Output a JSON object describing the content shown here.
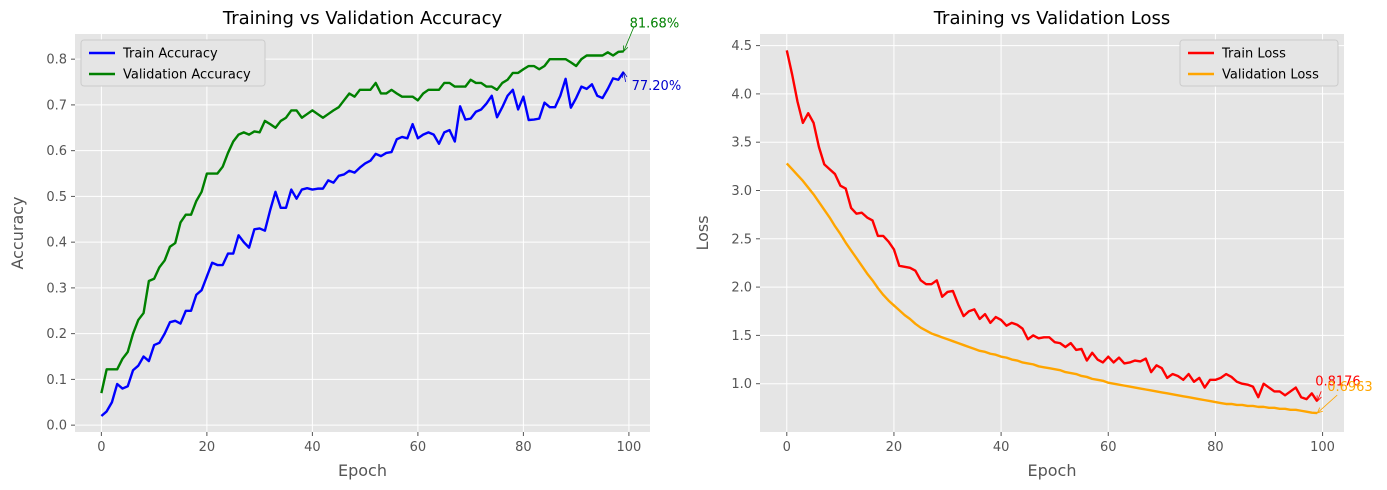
{
  "chart_data": [
    {
      "type": "line",
      "title": "Training vs Validation Accuracy",
      "xlabel": "Epoch",
      "ylabel": "Accuracy",
      "xlim": [
        -5,
        104
      ],
      "ylim": [
        -0.015,
        0.855
      ],
      "xticks": [
        0,
        20,
        40,
        60,
        80,
        100
      ],
      "yticks": [
        0.0,
        0.1,
        0.2,
        0.3,
        0.4,
        0.5,
        0.6,
        0.7,
        0.8
      ],
      "grid": true,
      "legend": "upper-left",
      "series": [
        {
          "name": "Train Accuracy",
          "color": "#0000ff",
          "x": [
            0,
            1,
            2,
            3,
            4,
            5,
            6,
            7,
            8,
            9,
            10,
            11,
            12,
            13,
            14,
            15,
            16,
            17,
            18,
            19,
            20,
            21,
            22,
            23,
            24,
            25,
            26,
            27,
            28,
            29,
            30,
            31,
            32,
            33,
            34,
            35,
            36,
            37,
            38,
            39,
            40,
            41,
            42,
            43,
            44,
            45,
            46,
            47,
            48,
            49,
            50,
            51,
            52,
            53,
            54,
            55,
            56,
            57,
            58,
            59,
            60,
            61,
            62,
            63,
            64,
            65,
            66,
            67,
            68,
            69,
            70,
            71,
            72,
            73,
            74,
            75,
            76,
            77,
            78,
            79,
            80,
            81,
            82,
            83,
            84,
            85,
            86,
            87,
            88,
            89,
            90,
            91,
            92,
            93,
            94,
            95,
            96,
            97,
            98,
            99
          ],
          "values": [
            0.02,
            0.03,
            0.05,
            0.09,
            0.08,
            0.085,
            0.12,
            0.13,
            0.15,
            0.14,
            0.175,
            0.18,
            0.2,
            0.225,
            0.228,
            0.222,
            0.25,
            0.25,
            0.285,
            0.295,
            0.325,
            0.355,
            0.35,
            0.35,
            0.375,
            0.375,
            0.415,
            0.4,
            0.388,
            0.428,
            0.43,
            0.425,
            0.47,
            0.51,
            0.475,
            0.475,
            0.515,
            0.495,
            0.515,
            0.518,
            0.515,
            0.517,
            0.517,
            0.535,
            0.53,
            0.545,
            0.548,
            0.556,
            0.552,
            0.563,
            0.572,
            0.578,
            0.593,
            0.588,
            0.595,
            0.597,
            0.625,
            0.63,
            0.627,
            0.658,
            0.627,
            0.635,
            0.64,
            0.635,
            0.615,
            0.64,
            0.645,
            0.62,
            0.697,
            0.668,
            0.67,
            0.685,
            0.69,
            0.703,
            0.72,
            0.673,
            0.695,
            0.72,
            0.733,
            0.69,
            0.718,
            0.667,
            0.668,
            0.67,
            0.705,
            0.695,
            0.695,
            0.72,
            0.757,
            0.694,
            0.715,
            0.74,
            0.735,
            0.745,
            0.72,
            0.715,
            0.735,
            0.758,
            0.755,
            0.772
          ]
        },
        {
          "name": "Validation Accuracy",
          "color": "#008000",
          "x": [
            0,
            1,
            2,
            3,
            4,
            5,
            6,
            7,
            8,
            9,
            10,
            11,
            12,
            13,
            14,
            15,
            16,
            17,
            18,
            19,
            20,
            21,
            22,
            23,
            24,
            25,
            26,
            27,
            28,
            29,
            30,
            31,
            32,
            33,
            34,
            35,
            36,
            37,
            38,
            39,
            40,
            41,
            42,
            43,
            44,
            45,
            46,
            47,
            48,
            49,
            50,
            51,
            52,
            53,
            54,
            55,
            56,
            57,
            58,
            59,
            60,
            61,
            62,
            63,
            64,
            65,
            66,
            67,
            68,
            69,
            70,
            71,
            72,
            73,
            74,
            75,
            76,
            77,
            78,
            79,
            80,
            81,
            82,
            83,
            84,
            85,
            86,
            87,
            88,
            89,
            90,
            91,
            92,
            93,
            94,
            95,
            96,
            97,
            98,
            99
          ],
          "values": [
            0.07,
            0.122,
            0.122,
            0.122,
            0.145,
            0.16,
            0.2,
            0.23,
            0.245,
            0.315,
            0.32,
            0.345,
            0.36,
            0.39,
            0.398,
            0.443,
            0.46,
            0.46,
            0.49,
            0.51,
            0.55,
            0.55,
            0.55,
            0.565,
            0.595,
            0.62,
            0.635,
            0.64,
            0.635,
            0.642,
            0.64,
            0.665,
            0.658,
            0.65,
            0.665,
            0.672,
            0.688,
            0.688,
            0.672,
            0.68,
            0.688,
            0.68,
            0.672,
            0.68,
            0.688,
            0.695,
            0.71,
            0.725,
            0.718,
            0.733,
            0.733,
            0.733,
            0.748,
            0.725,
            0.725,
            0.733,
            0.725,
            0.718,
            0.718,
            0.718,
            0.71,
            0.725,
            0.733,
            0.733,
            0.733,
            0.748,
            0.748,
            0.74,
            0.74,
            0.74,
            0.755,
            0.748,
            0.748,
            0.74,
            0.74,
            0.733,
            0.748,
            0.755,
            0.77,
            0.77,
            0.778,
            0.785,
            0.785,
            0.778,
            0.785,
            0.8,
            0.8,
            0.8,
            0.8,
            0.793,
            0.785,
            0.8,
            0.808,
            0.808,
            0.808,
            0.808,
            0.815,
            0.808,
            0.816,
            0.8168
          ]
        }
      ],
      "annotations": [
        {
          "text": "81.68%",
          "series": 1,
          "color": "#008000"
        },
        {
          "text": "77.20%",
          "series": 0,
          "color": "#0000cd"
        }
      ]
    },
    {
      "type": "line",
      "title": "Training vs Validation Loss",
      "xlabel": "Epoch",
      "ylabel": "Loss",
      "xlim": [
        -5,
        104
      ],
      "ylim": [
        0.5,
        4.62
      ],
      "xticks": [
        0,
        20,
        40,
        60,
        80,
        100
      ],
      "yticks": [
        1.0,
        1.5,
        2.0,
        2.5,
        3.0,
        3.5,
        4.0,
        4.5
      ],
      "grid": true,
      "legend": "upper-right",
      "series": [
        {
          "name": "Train Loss",
          "color": "#ff0000",
          "x": [
            0,
            1,
            2,
            3,
            4,
            5,
            6,
            7,
            8,
            9,
            10,
            11,
            12,
            13,
            14,
            15,
            16,
            17,
            18,
            19,
            20,
            21,
            22,
            23,
            24,
            25,
            26,
            27,
            28,
            29,
            30,
            31,
            32,
            33,
            34,
            35,
            36,
            37,
            38,
            39,
            40,
            41,
            42,
            43,
            44,
            45,
            46,
            47,
            48,
            49,
            50,
            51,
            52,
            53,
            54,
            55,
            56,
            57,
            58,
            59,
            60,
            61,
            62,
            63,
            64,
            65,
            66,
            67,
            68,
            69,
            70,
            71,
            72,
            73,
            74,
            75,
            76,
            77,
            78,
            79,
            80,
            81,
            82,
            83,
            84,
            85,
            86,
            87,
            88,
            89,
            90,
            91,
            92,
            93,
            94,
            95,
            96,
            97,
            98,
            99
          ],
          "values": [
            4.45,
            4.2,
            3.92,
            3.7,
            3.8,
            3.7,
            3.45,
            3.27,
            3.22,
            3.17,
            3.05,
            3.02,
            2.82,
            2.76,
            2.77,
            2.72,
            2.69,
            2.53,
            2.53,
            2.47,
            2.39,
            2.22,
            2.21,
            2.2,
            2.17,
            2.07,
            2.03,
            2.03,
            2.07,
            1.9,
            1.95,
            1.96,
            1.82,
            1.7,
            1.75,
            1.77,
            1.67,
            1.72,
            1.63,
            1.69,
            1.66,
            1.6,
            1.63,
            1.61,
            1.57,
            1.46,
            1.5,
            1.47,
            1.48,
            1.48,
            1.43,
            1.42,
            1.38,
            1.42,
            1.35,
            1.36,
            1.24,
            1.32,
            1.25,
            1.22,
            1.28,
            1.22,
            1.27,
            1.21,
            1.22,
            1.24,
            1.23,
            1.26,
            1.12,
            1.19,
            1.16,
            1.06,
            1.1,
            1.08,
            1.04,
            1.1,
            1.02,
            1.06,
            0.96,
            1.04,
            1.04,
            1.06,
            1.1,
            1.07,
            1.02,
            1.0,
            0.99,
            0.97,
            0.86,
            1.0,
            0.96,
            0.92,
            0.92,
            0.88,
            0.92,
            0.96,
            0.86,
            0.84,
            0.9,
            0.8176
          ]
        },
        {
          "name": "Validation Loss",
          "color": "#ffa500",
          "x": [
            0,
            1,
            2,
            3,
            4,
            5,
            6,
            7,
            8,
            9,
            10,
            11,
            12,
            13,
            14,
            15,
            16,
            17,
            18,
            19,
            20,
            21,
            22,
            23,
            24,
            25,
            26,
            27,
            28,
            29,
            30,
            31,
            32,
            33,
            34,
            35,
            36,
            37,
            38,
            39,
            40,
            41,
            42,
            43,
            44,
            45,
            46,
            47,
            48,
            49,
            50,
            51,
            52,
            53,
            54,
            55,
            56,
            57,
            58,
            59,
            60,
            61,
            62,
            63,
            64,
            65,
            66,
            67,
            68,
            69,
            70,
            71,
            72,
            73,
            74,
            75,
            76,
            77,
            78,
            79,
            80,
            81,
            82,
            83,
            84,
            85,
            86,
            87,
            88,
            89,
            90,
            91,
            92,
            93,
            94,
            95,
            96,
            97,
            98,
            99
          ],
          "values": [
            3.28,
            3.22,
            3.16,
            3.1,
            3.03,
            2.96,
            2.88,
            2.8,
            2.72,
            2.63,
            2.55,
            2.46,
            2.38,
            2.3,
            2.22,
            2.14,
            2.07,
            1.99,
            1.92,
            1.86,
            1.81,
            1.76,
            1.71,
            1.67,
            1.62,
            1.58,
            1.55,
            1.52,
            1.5,
            1.48,
            1.46,
            1.44,
            1.42,
            1.4,
            1.38,
            1.36,
            1.34,
            1.33,
            1.31,
            1.3,
            1.28,
            1.27,
            1.25,
            1.24,
            1.22,
            1.21,
            1.2,
            1.18,
            1.17,
            1.16,
            1.15,
            1.14,
            1.12,
            1.11,
            1.1,
            1.08,
            1.07,
            1.05,
            1.04,
            1.03,
            1.01,
            1.0,
            0.99,
            0.98,
            0.97,
            0.96,
            0.95,
            0.94,
            0.93,
            0.92,
            0.91,
            0.9,
            0.89,
            0.88,
            0.87,
            0.86,
            0.85,
            0.84,
            0.83,
            0.82,
            0.81,
            0.8,
            0.79,
            0.79,
            0.78,
            0.78,
            0.77,
            0.77,
            0.76,
            0.76,
            0.75,
            0.75,
            0.74,
            0.74,
            0.73,
            0.73,
            0.72,
            0.71,
            0.7,
            0.6963
          ]
        }
      ],
      "annotations": [
        {
          "text": "0.8176",
          "series": 0,
          "color": "#ff0000"
        },
        {
          "text": "0.6963",
          "series": 1,
          "color": "#ffa500"
        }
      ]
    }
  ]
}
